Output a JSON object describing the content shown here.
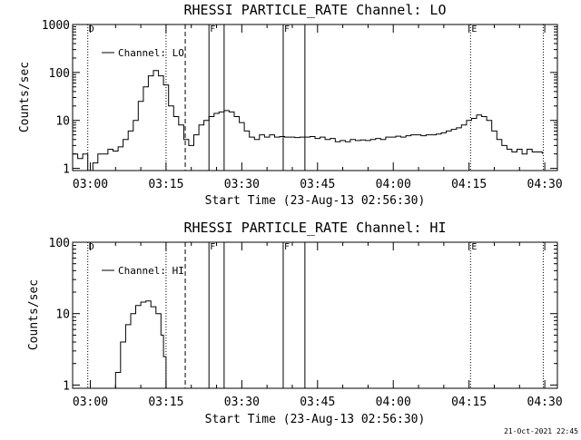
{
  "footer": {
    "timestamp": "21-Oct-2021 22:45"
  },
  "chart_data": [
    {
      "type": "line",
      "title": "RHESSI PARTICLE_RATE Channel: LO",
      "xlabel": "Start Time (23-Aug-13 02:56:30)",
      "ylabel": "Counts/sec",
      "yscale": "log",
      "xlim": [
        0,
        96
      ],
      "ylim": [
        0.9,
        1000
      ],
      "xtick_minutes": [
        3.5,
        18.5,
        33.5,
        48.5,
        63.5,
        78.5,
        93.5
      ],
      "xticks": [
        "03:00",
        "03:15",
        "03:30",
        "03:45",
        "04:00",
        "04:15",
        "04:30"
      ],
      "yticks": [
        1,
        10,
        100,
        1000
      ],
      "ytick_labels": [
        "1",
        "10",
        "100",
        "1000"
      ],
      "legend": "top-left",
      "series": [
        {
          "name": "Channel: LO",
          "x": [
            0,
            1,
            2,
            3,
            4,
            5,
            6,
            7,
            8,
            9,
            10,
            11,
            12,
            13,
            14,
            15,
            16,
            17,
            18,
            19,
            20,
            21,
            22,
            23,
            24,
            25,
            26,
            27,
            28,
            29,
            30,
            31,
            32,
            33,
            34,
            35,
            36,
            37,
            38,
            39,
            40,
            41,
            42,
            43,
            44,
            45,
            46,
            47,
            48,
            49,
            50,
            51,
            52,
            53,
            54,
            55,
            56,
            57,
            58,
            59,
            60,
            61,
            62,
            63,
            64,
            65,
            66,
            67,
            68,
            69,
            70,
            71,
            72,
            73,
            74,
            75,
            76,
            77,
            78,
            79,
            80,
            81,
            82,
            83,
            84,
            85,
            86,
            87,
            88,
            89,
            90,
            91,
            92,
            93
          ],
          "y": [
            2,
            1.6,
            2,
            0.8,
            1.3,
            2,
            2,
            2.5,
            2.3,
            2.8,
            4,
            6,
            10,
            25,
            50,
            85,
            110,
            85,
            55,
            20,
            12,
            8,
            4,
            3,
            5,
            8,
            10,
            12,
            14,
            15,
            16,
            15,
            12,
            9,
            6,
            4.5,
            4,
            5,
            4.5,
            5,
            4.5,
            4.6,
            4.5,
            4.5,
            4.4,
            4.5,
            4.5,
            4.6,
            4.2,
            4.5,
            4,
            4.2,
            3.6,
            3.8,
            3.6,
            4,
            3.8,
            3.9,
            3.8,
            4,
            4.2,
            4,
            4.5,
            4.5,
            4.7,
            4.5,
            4.8,
            5,
            5,
            4.8,
            5,
            5,
            5.2,
            5.5,
            6,
            6.5,
            7,
            8,
            10,
            11,
            13,
            12,
            10,
            6,
            4,
            3,
            2.5,
            2.2,
            2.5,
            2,
            2.5,
            2.2,
            2.2,
            2
          ]
        }
      ],
      "markers": [
        {
          "label": "D",
          "x": 3,
          "style": "dotted"
        },
        {
          "label": "",
          "x": 18.5,
          "style": "dotted"
        },
        {
          "label": "",
          "x": 22.3,
          "style": "dashed"
        },
        {
          "label": "F",
          "x": 27,
          "style": "solid"
        },
        {
          "label": "",
          "x": 30,
          "style": "solid"
        },
        {
          "label": "F",
          "x": 41.7,
          "style": "solid"
        },
        {
          "label": "",
          "x": 46,
          "style": "solid"
        },
        {
          "label": "E",
          "x": 78.8,
          "style": "dotted"
        },
        {
          "label": "",
          "x": 93.2,
          "style": "dotted"
        }
      ]
    },
    {
      "type": "line",
      "title": "RHESSI PARTICLE_RATE Channel: HI",
      "xlabel": "Start Time (23-Aug-13 02:56:30)",
      "ylabel": "Counts/sec",
      "yscale": "log",
      "xlim": [
        0,
        96
      ],
      "ylim": [
        0.9,
        100
      ],
      "xtick_minutes": [
        3.5,
        18.5,
        33.5,
        48.5,
        63.5,
        78.5,
        93.5
      ],
      "xticks": [
        "03:00",
        "03:15",
        "03:30",
        "03:45",
        "04:00",
        "04:15",
        "04:30"
      ],
      "yticks": [
        1,
        10,
        100
      ],
      "ytick_labels": [
        "1",
        "10",
        "100"
      ],
      "legend": "top-left",
      "series": [
        {
          "name": "Channel: HI",
          "x": [
            8.2,
            8.5,
            9.5,
            10.5,
            11.5,
            12.5,
            13.5,
            14.5,
            15.5,
            16.5,
            17.5,
            18,
            18.5
          ],
          "y": [
            0.85,
            1.5,
            4,
            7,
            10,
            13,
            14.5,
            15,
            12.5,
            10,
            5,
            2.5,
            0.85
          ]
        }
      ],
      "markers": [
        {
          "label": "D",
          "x": 3,
          "style": "dotted"
        },
        {
          "label": "",
          "x": 18.5,
          "style": "dotted"
        },
        {
          "label": "",
          "x": 22.3,
          "style": "dashed"
        },
        {
          "label": "F",
          "x": 27,
          "style": "solid"
        },
        {
          "label": "",
          "x": 30,
          "style": "solid"
        },
        {
          "label": "F",
          "x": 41.7,
          "style": "solid"
        },
        {
          "label": "",
          "x": 46,
          "style": "solid"
        },
        {
          "label": "E",
          "x": 78.8,
          "style": "dotted"
        },
        {
          "label": "",
          "x": 93.2,
          "style": "dotted"
        }
      ]
    }
  ]
}
